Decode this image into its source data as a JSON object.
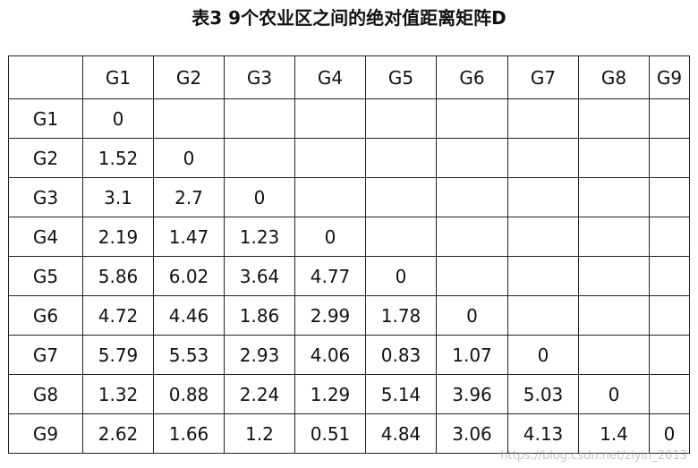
{
  "header": {
    "title": "表3  9个农业区之间的绝对值距离矩阵D"
  },
  "table": {
    "columns": [
      "G1",
      "G2",
      "G3",
      "G4",
      "G5",
      "G6",
      "G7",
      "G8",
      "G9"
    ],
    "rows": [
      {
        "label": "G1",
        "values": [
          "0"
        ]
      },
      {
        "label": "G2",
        "values": [
          "1.52",
          "0"
        ]
      },
      {
        "label": "G3",
        "values": [
          "3.1",
          "2.7",
          "0"
        ]
      },
      {
        "label": "G4",
        "values": [
          "2.19",
          "1.47",
          "1.23",
          "0"
        ]
      },
      {
        "label": "G5",
        "values": [
          "5.86",
          "6.02",
          "3.64",
          "4.77",
          "0"
        ]
      },
      {
        "label": "G6",
        "values": [
          "4.72",
          "4.46",
          "1.86",
          "2.99",
          "1.78",
          "0"
        ]
      },
      {
        "label": "G7",
        "values": [
          "5.79",
          "5.53",
          "2.93",
          "4.06",
          "0.83",
          "1.07",
          "0"
        ]
      },
      {
        "label": "G8",
        "values": [
          "1.32",
          "0.88",
          "2.24",
          "1.29",
          "5.14",
          "3.96",
          "5.03",
          "0"
        ]
      },
      {
        "label": "G9",
        "values": [
          "2.62",
          "1.66",
          "1.2",
          "0.51",
          "4.84",
          "3.06",
          "4.13",
          "1.4",
          "0"
        ]
      }
    ]
  },
  "watermark": "https://blog.csdn.net/ziyin_2013"
}
